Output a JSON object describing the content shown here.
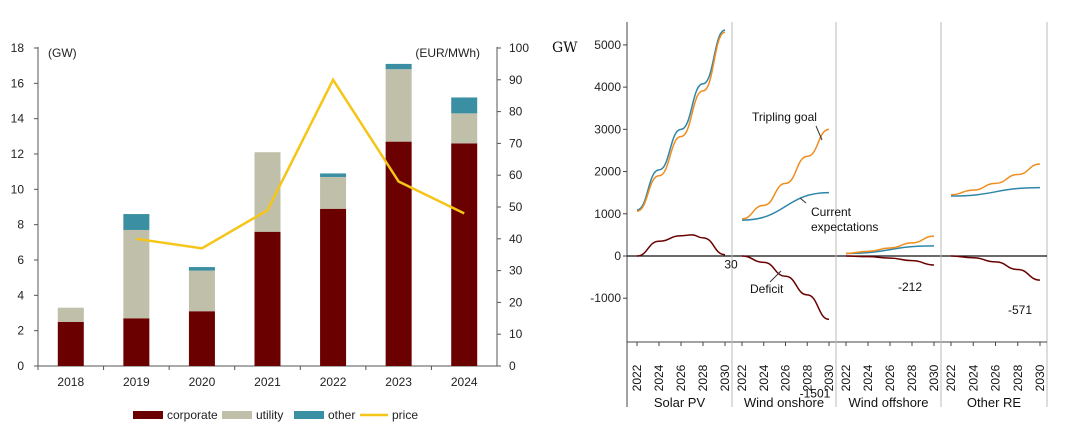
{
  "chart_data": [
    {
      "type": "bar",
      "stacked": true,
      "categories": [
        "2018",
        "2019",
        "2020",
        "2021",
        "2022",
        "2023",
        "2024"
      ],
      "series": [
        {
          "name": "corporate",
          "color": "#6b0000",
          "values": [
            2.5,
            2.7,
            3.1,
            7.6,
            8.9,
            12.7,
            12.6
          ]
        },
        {
          "name": "utility",
          "color": "#bfbfaa",
          "values": [
            0.8,
            5.0,
            2.3,
            4.5,
            1.8,
            4.1,
            1.7
          ]
        },
        {
          "name": "other",
          "color": "#3a8fa3",
          "values": [
            0.0,
            0.9,
            0.2,
            0.0,
            0.2,
            0.3,
            0.9
          ]
        }
      ],
      "line_series": [
        {
          "name": "price",
          "color": "#f5c518",
          "axis": "right",
          "values": [
            null,
            40,
            37,
            49,
            90,
            58,
            48
          ]
        }
      ],
      "ylabel": "(GW)",
      "ylim": [
        0,
        18
      ],
      "yticks": [
        0,
        2,
        4,
        6,
        8,
        10,
        12,
        14,
        16,
        18
      ],
      "y2label": "(EUR/MWh)",
      "y2lim": [
        0,
        100
      ],
      "y2ticks": [
        0,
        10,
        20,
        30,
        40,
        50,
        60,
        70,
        80,
        90,
        100
      ],
      "legend": [
        "corporate",
        "utility",
        "other",
        "price"
      ],
      "legend_position": "bottom"
    },
    {
      "type": "line",
      "ylabel": "GW",
      "ylim": [
        -1700,
        5400
      ],
      "yticks": [
        -1000,
        0,
        1000,
        2000,
        3000,
        4000,
        5000
      ],
      "x_years": [
        "2022",
        "2024",
        "2026",
        "2028",
        "2030"
      ],
      "panels": [
        {
          "name": "Solar PV",
          "series": [
            {
              "name": "Current expectations",
              "color": "#2e86a8",
              "x": [
                2022,
                2024,
                2026,
                2028,
                2030
              ],
              "values": [
                1090,
                2040,
                3000,
                4080,
                5350
              ]
            },
            {
              "name": "Tripling goal",
              "color": "#f08c1e",
              "x": [
                2022,
                2024,
                2026,
                2028,
                2030
              ],
              "values": [
                1060,
                1900,
                2830,
                3910,
                5300
              ]
            },
            {
              "name": "Deficit",
              "color": "#6b0000",
              "x": [
                2022,
                2024,
                2026,
                2027,
                2028,
                2030
              ],
              "values": [
                0,
                350,
                480,
                500,
                430,
                30
              ]
            }
          ],
          "end_label": "30"
        },
        {
          "name": "Wind onshore",
          "series": [
            {
              "name": "Current expectations",
              "color": "#2e86a8",
              "x": [
                2022,
                2030
              ],
              "values": [
                850,
                1500
              ]
            },
            {
              "name": "Tripling goal",
              "color": "#f08c1e",
              "x": [
                2022,
                2024,
                2026,
                2028,
                2030
              ],
              "values": [
                880,
                1200,
                1720,
                2360,
                3000
              ]
            },
            {
              "name": "Deficit",
              "color": "#6b0000",
              "x": [
                2022,
                2024,
                2026,
                2028,
                2030
              ],
              "values": [
                0,
                -150,
                -480,
                -920,
                -1501
              ]
            }
          ],
          "end_label": "-1501"
        },
        {
          "name": "Wind offshore",
          "series": [
            {
              "name": "Current expectations",
              "color": "#2e86a8",
              "x": [
                2022,
                2030
              ],
              "values": [
                60,
                240
              ]
            },
            {
              "name": "Tripling goal",
              "color": "#f08c1e",
              "x": [
                2022,
                2024,
                2026,
                2028,
                2030
              ],
              "values": [
                60,
                110,
                190,
                310,
                470
              ]
            },
            {
              "name": "Deficit",
              "color": "#6b0000",
              "x": [
                2022,
                2024,
                2026,
                2028,
                2030
              ],
              "values": [
                0,
                -15,
                -50,
                -110,
                -212
              ]
            }
          ],
          "end_label": "-212"
        },
        {
          "name": "Other RE",
          "series": [
            {
              "name": "Current expectations",
              "color": "#2e86a8",
              "x": [
                2022,
                2030
              ],
              "values": [
                1420,
                1620
              ]
            },
            {
              "name": "Tripling goal",
              "color": "#f08c1e",
              "x": [
                2022,
                2024,
                2026,
                2028,
                2030
              ],
              "values": [
                1450,
                1560,
                1720,
                1930,
                2180
              ]
            },
            {
              "name": "Deficit",
              "color": "#6b0000",
              "x": [
                2022,
                2024,
                2026,
                2028,
                2030
              ],
              "values": [
                0,
                -40,
                -140,
                -320,
                -571
              ]
            }
          ],
          "end_label": "-571"
        }
      ],
      "annotations": [
        "Tripling goal",
        "Current expectations",
        "Deficit"
      ]
    }
  ]
}
